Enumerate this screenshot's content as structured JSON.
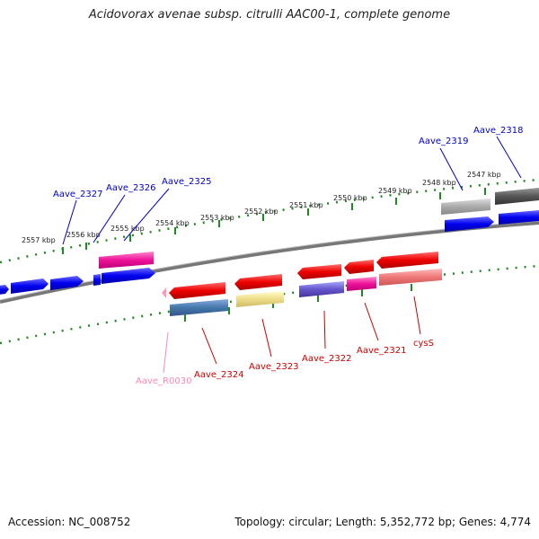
{
  "header": {
    "title": "Acidovorax avenae subsp. citrulli AAC00-1, complete genome"
  },
  "footer": {
    "accession": "Accession: NC_008752",
    "summary": "Topology: circular; Length: 5,352,772 bp; Genes: 4,774"
  },
  "scale": {
    "tick_labels": [
      "2557 kbp",
      "2556 kbp",
      "2555 kbp",
      "2554 kbp",
      "2553 kbp",
      "2552 kbp",
      "2551 kbp",
      "2550 kbp",
      "2549 kbp",
      "2548 kbp",
      "2547 kbp"
    ]
  },
  "genes": {
    "top": [
      "Aave_2327",
      "Aave_2326",
      "Aave_2325",
      "Aave_2319",
      "Aave_2318"
    ],
    "bottom": [
      "Aave_R0030",
      "Aave_2324",
      "Aave_2323",
      "Aave_2322",
      "Aave_2321",
      "cysS"
    ]
  },
  "colors": {
    "forward_cds": "#0000ee",
    "reverse_cds": "#ee0000",
    "rna": "#ff99bb",
    "tick": "#228822",
    "backbone": "#888888"
  }
}
